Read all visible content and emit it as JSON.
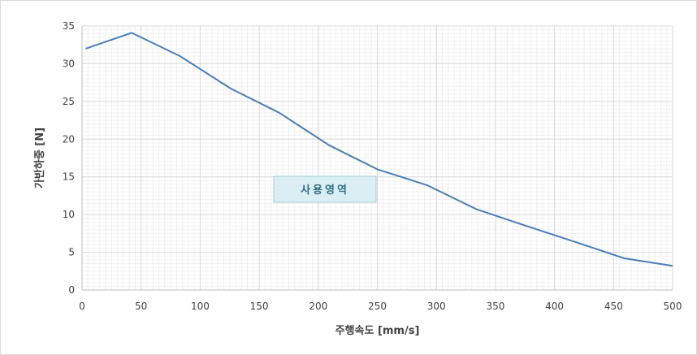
{
  "chart_data": {
    "type": "line",
    "title": "",
    "xlabel": "주행속도 [mm/s]",
    "ylabel": "가반하중 [N]",
    "xlim": [
      0,
      500
    ],
    "ylim": [
      0,
      35
    ],
    "x_ticks": [
      0,
      50,
      100,
      150,
      200,
      250,
      300,
      350,
      400,
      450,
      500
    ],
    "y_ticks": [
      0,
      5,
      10,
      15,
      20,
      25,
      30,
      35
    ],
    "grid": {
      "major": true,
      "minor": true
    },
    "legend": "none",
    "series": [
      {
        "color": "#4a7ebb",
        "x": [
          3,
          42,
          83,
          126,
          167,
          209,
          250,
          292,
          334,
          376,
          417,
          459,
          500
        ],
        "y": [
          32,
          34.1,
          31,
          26.7,
          23.5,
          19.2,
          16,
          13.9,
          10.7,
          8.5,
          6.4,
          4.2,
          3.2
        ]
      }
    ],
    "annotation": {
      "text": "사용영역",
      "fill": "#dbeef4",
      "border": "#a6c9d6"
    }
  }
}
